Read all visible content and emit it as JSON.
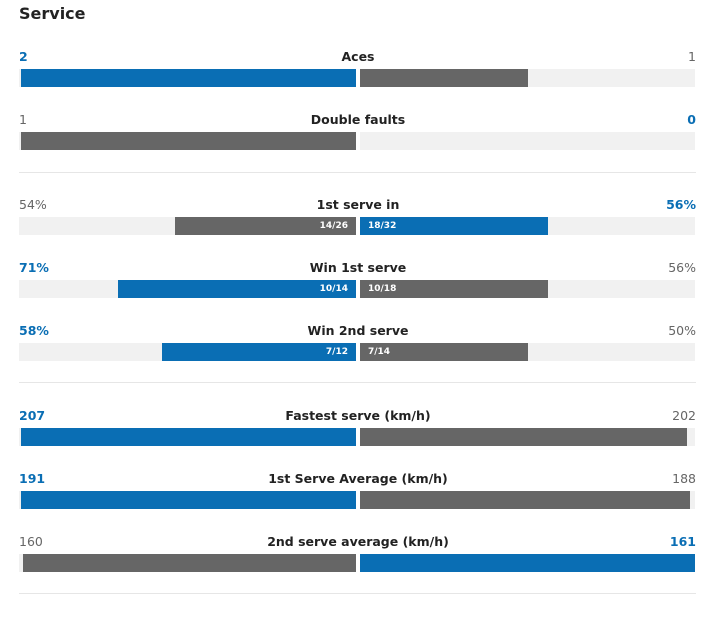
{
  "title": "Service",
  "colors": {
    "winner": "#0a6eb4",
    "other": "#666666",
    "track": "#f1f1f1",
    "detail": "#ffffff"
  },
  "groups": [
    {
      "rows": [
        {
          "label": "Aces",
          "winner": "left",
          "left": {
            "value": 2
          },
          "right": {
            "value": 1
          }
        },
        {
          "label": "Double faults",
          "winner": "right",
          "left": {
            "value": 1
          },
          "right": {
            "value": 0
          }
        }
      ]
    },
    {
      "rows": [
        {
          "label": "1st serve in",
          "winner": "right",
          "max": 100,
          "left": {
            "value": 54,
            "label": "54%",
            "detail": "14/26"
          },
          "right": {
            "value": 56,
            "label": "56%",
            "detail": "18/32"
          }
        },
        {
          "label": "Win 1st serve",
          "winner": "left",
          "max": 100,
          "left": {
            "value": 71,
            "label": "71%",
            "detail": "10/14"
          },
          "right": {
            "value": 56,
            "label": "56%",
            "detail": "10/18"
          }
        },
        {
          "label": "Win 2nd serve",
          "winner": "left",
          "max": 100,
          "left": {
            "value": 58,
            "label": "58%",
            "detail": "7/12"
          },
          "right": {
            "value": 50,
            "label": "50%",
            "detail": "7/14"
          }
        }
      ]
    },
    {
      "rows": [
        {
          "label": "Fastest serve (km/h)",
          "winner": "left",
          "left": {
            "value": 207
          },
          "right": {
            "value": 202
          }
        },
        {
          "label": "1st Serve Average (km/h)",
          "winner": "left",
          "left": {
            "value": 191
          },
          "right": {
            "value": 188
          }
        },
        {
          "label": "2nd serve average (km/h)",
          "winner": "right",
          "left": {
            "value": 160
          },
          "right": {
            "value": 161
          }
        }
      ]
    }
  ]
}
